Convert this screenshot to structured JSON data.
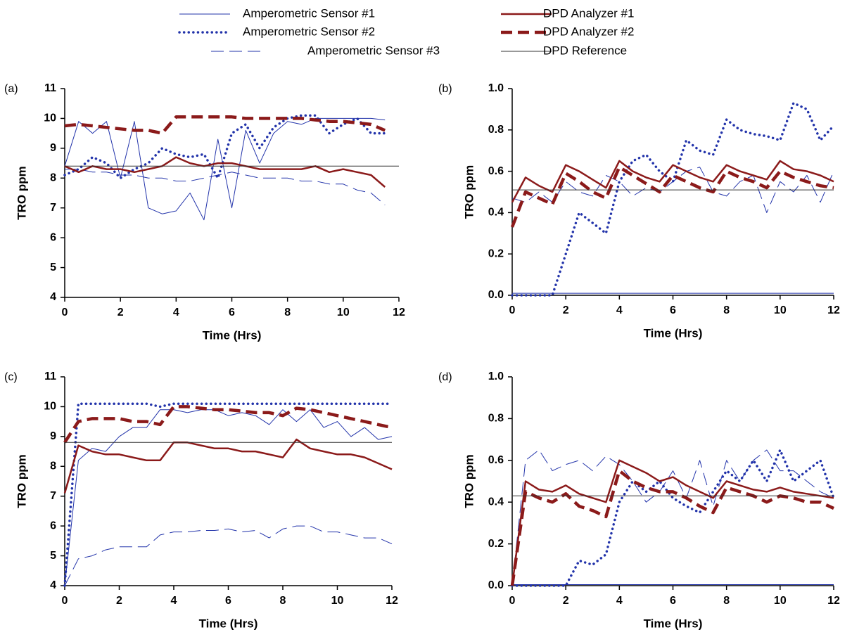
{
  "legend": [
    {
      "name": "Amperometric Sensor #1",
      "color": "#2233aa",
      "width": 1,
      "dash": "solid"
    },
    {
      "name": "Amperometric Sensor #2",
      "color": "#2233aa",
      "width": 3.5,
      "dash": "dotted"
    },
    {
      "name": "Amperometric Sensor #3",
      "color": "#2233aa",
      "width": 1,
      "dash": "dashed"
    },
    {
      "name": "DPD Analyzer #1",
      "color": "#8b1a1a",
      "width": 2.5,
      "dash": "solid"
    },
    {
      "name": "DPD Analyzer #2",
      "color": "#8b1a1a",
      "width": 4.5,
      "dash": "dashed"
    },
    {
      "name": "DPD Reference",
      "color": "#333333",
      "width": 1,
      "dash": "solid"
    }
  ],
  "chart_data": [
    {
      "type": "line",
      "panel_label": "(a)",
      "xlabel": "Time (Hrs)",
      "ylabel": "TRO ppm",
      "xlim": [
        0,
        12
      ],
      "xticks": [
        0,
        2,
        4,
        6,
        8,
        10,
        12
      ],
      "ylim": [
        4,
        11
      ],
      "yticks": [
        4,
        5,
        6,
        7,
        8,
        9,
        10,
        11
      ],
      "x": [
        0,
        0.5,
        1,
        1.5,
        2,
        2.5,
        3,
        3.5,
        4,
        4.5,
        5,
        5.5,
        6,
        6.5,
        7,
        7.5,
        8,
        8.5,
        9,
        9.5,
        10,
        10.5,
        11,
        11.5,
        12
      ],
      "series": [
        {
          "values": [
            8.4,
            9.9,
            9.5,
            9.9,
            8.0,
            9.9,
            7.0,
            6.8,
            6.9,
            7.5,
            6.6,
            9.3,
            7.0,
            9.6,
            8.5,
            9.5,
            9.9,
            9.8,
            10.0,
            10.0,
            10.0,
            10.0,
            10.0,
            9.95,
            null
          ]
        },
        {
          "values": [
            8.1,
            8.3,
            8.7,
            8.5,
            8.0,
            8.3,
            8.5,
            9.0,
            8.8,
            8.7,
            8.8,
            8.0,
            9.5,
            9.8,
            9.0,
            9.7,
            10.0,
            10.1,
            10.1,
            9.5,
            9.8,
            10.0,
            9.5,
            9.5,
            null
          ]
        },
        {
          "values": [
            8.3,
            8.3,
            8.2,
            8.2,
            8.1,
            8.1,
            8.0,
            8.0,
            7.9,
            7.9,
            8.0,
            8.1,
            8.2,
            8.1,
            8.0,
            8.0,
            8.0,
            7.9,
            7.9,
            7.8,
            7.8,
            7.6,
            7.5,
            7.1,
            null
          ]
        },
        {
          "values": [
            8.4,
            8.2,
            8.4,
            8.3,
            8.3,
            8.2,
            8.3,
            8.4,
            8.7,
            8.5,
            8.4,
            8.5,
            8.5,
            8.4,
            8.3,
            8.3,
            8.3,
            8.3,
            8.4,
            8.2,
            8.3,
            8.2,
            8.1,
            7.7,
            null
          ]
        },
        {
          "values": [
            9.75,
            9.8,
            9.75,
            9.7,
            9.65,
            9.6,
            9.6,
            9.5,
            10.05,
            10.05,
            10.05,
            10.05,
            10.05,
            10.0,
            10.0,
            10.0,
            10.0,
            10.0,
            9.95,
            9.9,
            9.9,
            9.85,
            9.8,
            9.6,
            null
          ]
        },
        {
          "values": [
            8.4,
            8.4,
            8.4,
            8.4,
            8.4,
            8.4,
            8.4,
            8.4,
            8.4,
            8.4,
            8.4,
            8.4,
            8.4,
            8.4,
            8.4,
            8.4,
            8.4,
            8.4,
            8.4,
            8.4,
            8.4,
            8.4,
            8.4,
            8.4,
            8.4
          ]
        }
      ]
    },
    {
      "type": "line",
      "panel_label": "(b)",
      "xlabel": "Time (Hrs)",
      "ylabel": "TRO ppm",
      "xlim": [
        0,
        12
      ],
      "xticks": [
        0,
        2,
        4,
        6,
        8,
        10,
        12
      ],
      "ylim": [
        0,
        1
      ],
      "yticks": [
        {
          "value": 0,
          "label": "0.0"
        },
        0.2,
        0.4,
        0.6,
        0.8,
        {
          "value": 1,
          "label": "1.0"
        }
      ],
      "x": [
        0,
        0.5,
        1,
        1.5,
        2,
        2.5,
        3,
        3.5,
        4,
        4.5,
        5,
        5.5,
        6,
        6.5,
        7,
        7.5,
        8,
        8.5,
        9,
        9.5,
        10,
        10.5,
        11,
        11.5,
        12
      ],
      "series": [
        {
          "values": [
            0.01,
            0.01,
            0.01,
            0.01,
            0.01,
            0.01,
            0.01,
            0.01,
            0.01,
            0.01,
            0.01,
            0.01,
            0.01,
            0.01,
            0.01,
            0.01,
            0.01,
            0.01,
            0.01,
            0.01,
            0.01,
            0.01,
            0.01,
            0.01,
            0.01
          ]
        },
        {
          "values": [
            0.0,
            0.0,
            0.0,
            0.0,
            0.2,
            0.4,
            0.35,
            0.3,
            0.55,
            0.65,
            0.68,
            0.6,
            0.55,
            0.75,
            0.7,
            0.68,
            0.85,
            0.8,
            0.78,
            0.77,
            0.75,
            0.93,
            0.9,
            0.75,
            0.82
          ]
        },
        {
          "values": [
            0.47,
            0.45,
            0.5,
            0.45,
            0.55,
            0.5,
            0.48,
            0.58,
            0.55,
            0.48,
            0.52,
            0.5,
            0.55,
            0.6,
            0.62,
            0.5,
            0.48,
            0.55,
            0.58,
            0.4,
            0.55,
            0.5,
            0.58,
            0.45,
            0.6
          ]
        },
        {
          "values": [
            0.45,
            0.57,
            0.53,
            0.5,
            0.63,
            0.6,
            0.56,
            0.52,
            0.65,
            0.6,
            0.57,
            0.55,
            0.63,
            0.6,
            0.57,
            0.55,
            0.63,
            0.6,
            0.58,
            0.56,
            0.65,
            0.61,
            0.6,
            0.58,
            0.55
          ]
        },
        {
          "values": [
            0.33,
            0.5,
            0.47,
            0.44,
            0.59,
            0.55,
            0.5,
            0.47,
            0.62,
            0.58,
            0.54,
            0.5,
            0.58,
            0.55,
            0.52,
            0.5,
            0.6,
            0.57,
            0.55,
            0.52,
            0.6,
            0.57,
            0.55,
            0.53,
            0.52
          ]
        },
        {
          "values": [
            0.51,
            0.51,
            0.51,
            0.51,
            0.51,
            0.51,
            0.51,
            0.51,
            0.51,
            0.51,
            0.51,
            0.51,
            0.51,
            0.51,
            0.51,
            0.51,
            0.51,
            0.51,
            0.51,
            0.51,
            0.51,
            0.51,
            0.51,
            0.51,
            0.51
          ]
        }
      ]
    },
    {
      "type": "line",
      "panel_label": "(c)",
      "xlabel": "Time (Hrs)",
      "ylabel": "TRO ppm",
      "xlim": [
        0,
        12
      ],
      "xticks": [
        0,
        2,
        4,
        6,
        8,
        10,
        12
      ],
      "ylim": [
        4,
        11
      ],
      "yticks": [
        4,
        5,
        6,
        7,
        8,
        9,
        10,
        11
      ],
      "x": [
        0,
        0.5,
        1,
        1.5,
        2,
        2.5,
        3,
        3.5,
        4,
        4.5,
        5,
        5.5,
        6,
        6.5,
        7,
        7.5,
        8,
        8.5,
        9,
        9.5,
        10,
        10.5,
        11,
        11.5,
        12
      ],
      "series": [
        {
          "values": [
            4.0,
            8.2,
            8.6,
            8.5,
            9.0,
            9.3,
            9.3,
            9.9,
            9.9,
            9.8,
            9.9,
            9.9,
            9.7,
            9.8,
            9.7,
            9.4,
            9.9,
            9.5,
            9.9,
            9.3,
            9.5,
            9.0,
            9.3,
            8.9,
            9.0
          ]
        },
        {
          "values": [
            4.0,
            10.1,
            10.1,
            10.1,
            10.1,
            10.1,
            10.1,
            10.0,
            10.1,
            10.1,
            10.1,
            10.1,
            10.1,
            10.1,
            10.1,
            10.1,
            10.1,
            10.1,
            10.1,
            10.1,
            10.1,
            10.1,
            10.1,
            10.1,
            10.1
          ]
        },
        {
          "values": [
            4.0,
            4.9,
            5.0,
            5.2,
            5.3,
            5.3,
            5.3,
            5.7,
            5.8,
            5.8,
            5.85,
            5.85,
            5.9,
            5.8,
            5.85,
            5.6,
            5.9,
            6.0,
            6.0,
            5.8,
            5.8,
            5.7,
            5.6,
            5.6,
            5.4
          ]
        },
        {
          "values": [
            7.1,
            8.7,
            8.5,
            8.4,
            8.4,
            8.3,
            8.2,
            8.2,
            8.8,
            8.8,
            8.7,
            8.6,
            8.6,
            8.5,
            8.5,
            8.4,
            8.3,
            8.9,
            8.6,
            8.5,
            8.4,
            8.4,
            8.3,
            8.1,
            7.9
          ]
        },
        {
          "values": [
            8.8,
            9.5,
            9.6,
            9.6,
            9.6,
            9.5,
            9.5,
            9.4,
            10.0,
            10.0,
            9.95,
            9.9,
            9.9,
            9.85,
            9.8,
            9.8,
            9.7,
            9.95,
            9.9,
            9.8,
            9.7,
            9.6,
            9.5,
            9.4,
            9.3
          ]
        },
        {
          "values": [
            8.8,
            8.8,
            8.8,
            8.8,
            8.8,
            8.8,
            8.8,
            8.8,
            8.8,
            8.8,
            8.8,
            8.8,
            8.8,
            8.8,
            8.8,
            8.8,
            8.8,
            8.8,
            8.8,
            8.8,
            8.8,
            8.8,
            8.8,
            8.8,
            8.8
          ]
        }
      ]
    },
    {
      "type": "line",
      "panel_label": "(d)",
      "xlabel": "Time (Hrs)",
      "ylabel": "TRO ppm",
      "xlim": [
        0,
        12
      ],
      "xticks": [
        0,
        2,
        4,
        6,
        8,
        10,
        12
      ],
      "ylim": [
        0,
        1
      ],
      "yticks": [
        {
          "value": 0,
          "label": "0.0"
        },
        0.2,
        0.4,
        0.6,
        0.8,
        {
          "value": 1,
          "label": "1.0"
        }
      ],
      "x": [
        0,
        0.5,
        1,
        1.5,
        2,
        2.5,
        3,
        3.5,
        4,
        4.5,
        5,
        5.5,
        6,
        6.5,
        7,
        7.5,
        8,
        8.5,
        9,
        9.5,
        10,
        10.5,
        11,
        11.5,
        12
      ],
      "series": [
        {
          "values": [
            0.005,
            0.005,
            0.005,
            0.005,
            0.005,
            0.005,
            0.005,
            0.005,
            0.005,
            0.005,
            0.005,
            0.005,
            0.005,
            0.005,
            0.005,
            0.005,
            0.005,
            0.005,
            0.005,
            0.005,
            0.005,
            0.005,
            0.005,
            0.005,
            0.005
          ]
        },
        {
          "values": [
            0.0,
            0.0,
            0.0,
            0.0,
            0.0,
            0.12,
            0.1,
            0.15,
            0.4,
            0.5,
            0.45,
            0.5,
            0.42,
            0.38,
            0.35,
            0.45,
            0.55,
            0.5,
            0.6,
            0.5,
            0.65,
            0.5,
            0.55,
            0.6,
            0.42
          ]
        },
        {
          "values": [
            0.0,
            0.6,
            0.65,
            0.55,
            0.58,
            0.6,
            0.55,
            0.62,
            0.58,
            0.5,
            0.4,
            0.45,
            0.55,
            0.42,
            0.6,
            0.38,
            0.6,
            0.5,
            0.6,
            0.65,
            0.55,
            0.55,
            0.5,
            0.45,
            0.42
          ]
        },
        {
          "values": [
            0.0,
            0.5,
            0.46,
            0.45,
            0.48,
            0.44,
            0.42,
            0.4,
            0.6,
            0.57,
            0.54,
            0.5,
            0.52,
            0.48,
            0.45,
            0.42,
            0.5,
            0.48,
            0.46,
            0.45,
            0.47,
            0.45,
            0.44,
            0.43,
            0.42
          ]
        },
        {
          "values": [
            0.0,
            0.45,
            0.42,
            0.4,
            0.44,
            0.38,
            0.36,
            0.33,
            0.55,
            0.5,
            0.47,
            0.45,
            0.45,
            0.42,
            0.38,
            0.35,
            0.47,
            0.45,
            0.43,
            0.4,
            0.43,
            0.42,
            0.4,
            0.4,
            0.37
          ]
        },
        {
          "values": [
            0.43,
            0.43,
            0.43,
            0.43,
            0.43,
            0.43,
            0.43,
            0.43,
            0.43,
            0.43,
            0.43,
            0.43,
            0.43,
            0.43,
            0.43,
            0.43,
            0.43,
            0.43,
            0.43,
            0.43,
            0.43,
            0.43,
            0.43,
            0.43,
            0.43
          ]
        }
      ]
    }
  ]
}
